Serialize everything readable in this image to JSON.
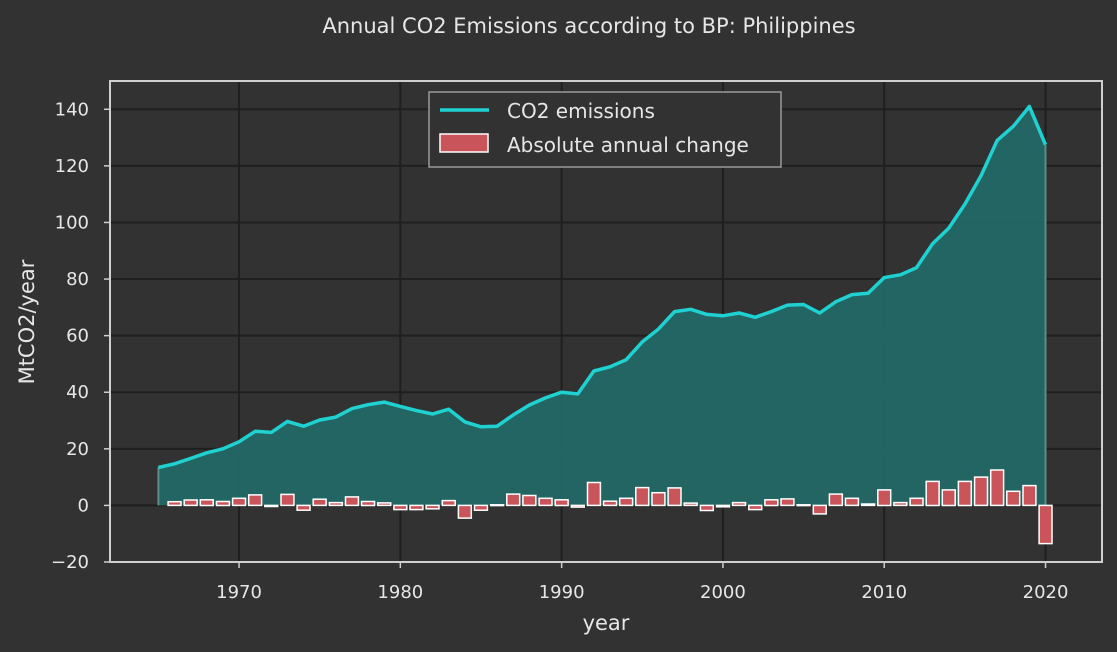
{
  "chart_data": {
    "type": "line",
    "title": "Annual CO2 Emissions according to BP: Philippines",
    "xlabel": "year",
    "ylabel": "MtCO2/year",
    "xlim": [
      1962,
      2023.5
    ],
    "ylim": [
      -20,
      150
    ],
    "xticks": [
      1970,
      1980,
      1990,
      2000,
      2010,
      2020
    ],
    "yticks": [
      -20,
      0,
      20,
      40,
      60,
      80,
      100,
      120,
      140
    ],
    "grid": true,
    "legend_position": "top-center",
    "colors": {
      "background": "#323232",
      "frame": "#cfcfcf",
      "grid": "#1f1f1f",
      "line": "#1fd1d1",
      "fill": "#236865",
      "bar": "#c9545a",
      "bar_edge": "#ffffff"
    },
    "x": [
      1965,
      1966,
      1967,
      1968,
      1969,
      1970,
      1971,
      1972,
      1973,
      1974,
      1975,
      1976,
      1977,
      1978,
      1979,
      1980,
      1981,
      1982,
      1983,
      1984,
      1985,
      1986,
      1987,
      1988,
      1989,
      1990,
      1991,
      1992,
      1993,
      1994,
      1995,
      1996,
      1997,
      1998,
      1999,
      2000,
      2001,
      2002,
      2003,
      2004,
      2005,
      2006,
      2007,
      2008,
      2009,
      2010,
      2011,
      2012,
      2013,
      2014,
      2015,
      2016,
      2017,
      2018,
      2019,
      2020
    ],
    "series": [
      {
        "name": "CO2 emissions",
        "type": "line",
        "values": [
          13.4,
          14.7,
          16.6,
          18.6,
          20.0,
          22.5,
          26.2,
          25.8,
          29.7,
          28.0,
          30.2,
          31.2,
          34.2,
          35.6,
          36.5,
          35.0,
          33.5,
          32.3,
          34.0,
          29.5,
          27.8,
          28.0,
          32.0,
          35.5,
          38.0,
          40.0,
          39.4,
          47.5,
          49.0,
          51.5,
          57.8,
          62.3,
          68.5,
          69.3,
          67.5,
          67.0,
          68.0,
          66.5,
          68.5,
          70.8,
          71.0,
          68.0,
          72.0,
          74.5,
          75.0,
          80.5,
          81.5,
          84.0,
          92.5,
          98.0,
          106.5,
          116.5,
          129.0,
          134.0,
          141.0,
          127.5
        ]
      },
      {
        "name": "Absolute annual change",
        "type": "bar",
        "values": [
          null,
          1.3,
          1.9,
          2.0,
          1.4,
          2.5,
          3.7,
          -0.4,
          3.9,
          -1.7,
          2.2,
          1.0,
          3.0,
          1.4,
          0.9,
          -1.5,
          -1.5,
          -1.2,
          1.7,
          -4.5,
          -1.7,
          0.2,
          4.0,
          3.5,
          2.5,
          2.0,
          -0.6,
          8.1,
          1.5,
          2.5,
          6.3,
          4.5,
          6.2,
          0.8,
          -1.8,
          -0.5,
          1.0,
          -1.5,
          2.0,
          2.3,
          0.2,
          -3.0,
          4.0,
          2.5,
          0.5,
          5.5,
          1.0,
          2.5,
          8.5,
          5.5,
          8.5,
          10.0,
          12.5,
          5.0,
          7.0,
          -13.5
        ]
      }
    ]
  }
}
